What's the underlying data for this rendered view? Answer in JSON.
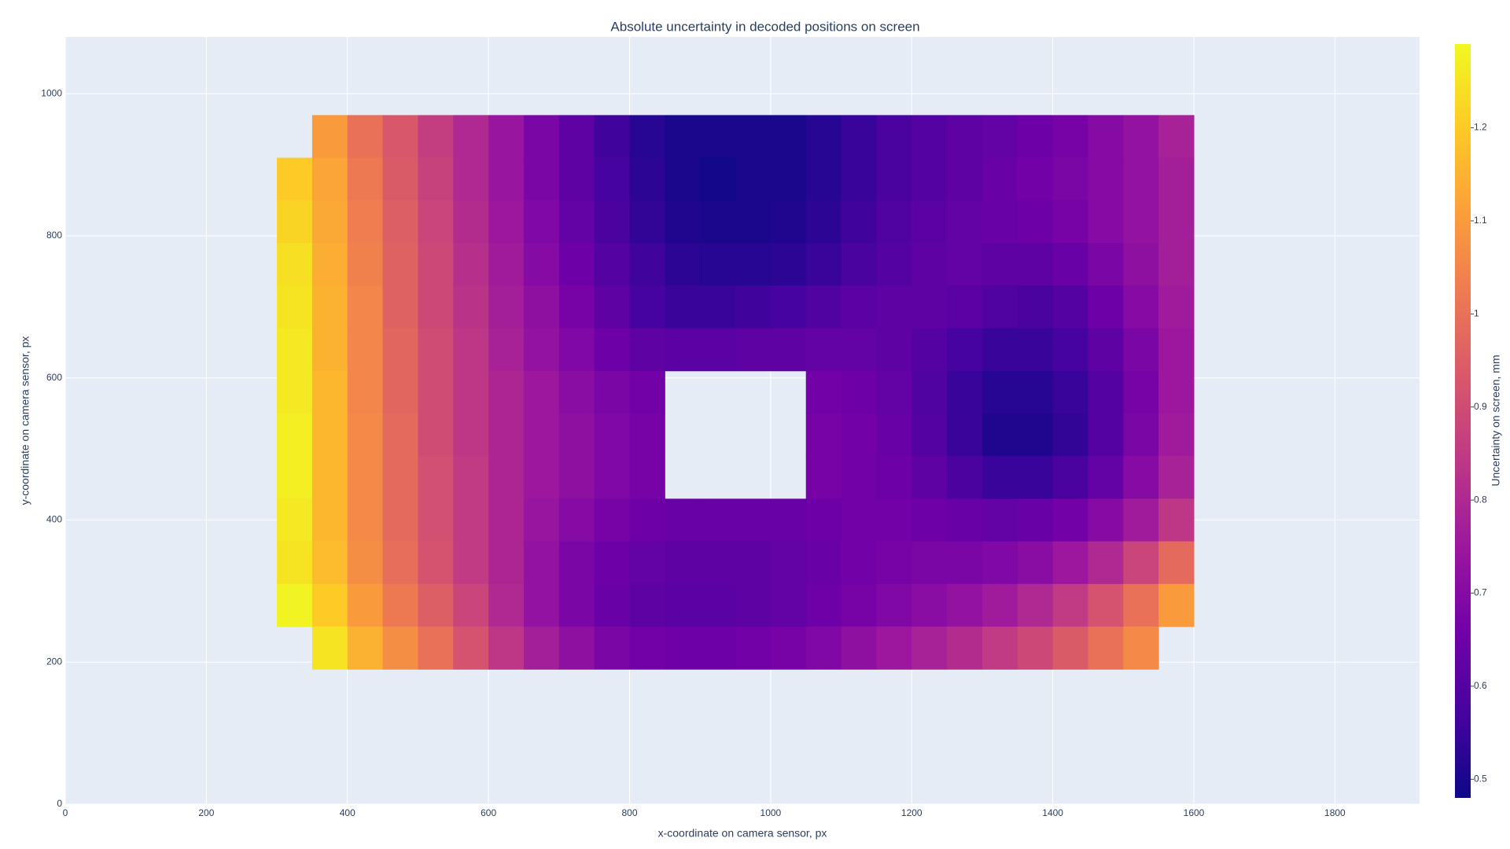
{
  "chart_data": {
    "type": "heatmap",
    "title": "Absolute uncertainty in decoded positions on screen",
    "x_label": "x-coordinate on camera sensor, px",
    "y_label": "y-coordinate on camera sensor, px",
    "colorbar_title": "Uncertainty on screen, mm",
    "xlim": [
      0,
      1920
    ],
    "ylim": [
      0,
      1080
    ],
    "xticks": [
      0,
      200,
      400,
      600,
      800,
      1000,
      1200,
      1400,
      1600,
      1800
    ],
    "yticks": [
      0,
      200,
      400,
      600,
      800,
      1000
    ],
    "zlim": [
      0.48,
      1.29
    ],
    "zticks": [
      0.5,
      0.6,
      0.7,
      0.8,
      0.9,
      1,
      1.1,
      1.2
    ],
    "colorscale": [
      "#0d0887",
      "#46039f",
      "#7201a8",
      "#9c179e",
      "#bd3786",
      "#d8576b",
      "#ed7953",
      "#fb9f3a",
      "#fdca26",
      "#f0f921"
    ],
    "grid": true,
    "x": [
      325,
      375,
      425,
      475,
      525,
      575,
      625,
      675,
      725,
      775,
      825,
      875,
      925,
      975,
      1025,
      1075,
      1125,
      1175,
      1225,
      1275,
      1325,
      1375,
      1425,
      1475,
      1525,
      1575
    ],
    "y": [
      940,
      880,
      820,
      760,
      700,
      640,
      580,
      520,
      460,
      400,
      340,
      280,
      220
    ],
    "z": [
      [
        null,
        1.1,
        1.0,
        0.93,
        0.86,
        0.8,
        0.74,
        0.68,
        0.62,
        0.56,
        0.52,
        0.5,
        0.5,
        0.5,
        0.5,
        0.52,
        0.55,
        0.58,
        0.6,
        0.62,
        0.63,
        0.65,
        0.67,
        0.7,
        0.73,
        0.78
      ],
      [
        1.2,
        1.12,
        1.02,
        0.94,
        0.87,
        0.8,
        0.74,
        0.68,
        0.62,
        0.57,
        0.53,
        0.5,
        0.49,
        0.5,
        0.5,
        0.52,
        0.55,
        0.58,
        0.6,
        0.62,
        0.64,
        0.66,
        0.68,
        0.7,
        0.73,
        0.77
      ],
      [
        1.22,
        1.13,
        1.03,
        0.95,
        0.88,
        0.81,
        0.75,
        0.69,
        0.63,
        0.58,
        0.54,
        0.51,
        0.5,
        0.5,
        0.51,
        0.53,
        0.56,
        0.59,
        0.61,
        0.63,
        0.64,
        0.65,
        0.67,
        0.7,
        0.73,
        0.77
      ],
      [
        1.24,
        1.14,
        1.04,
        0.96,
        0.89,
        0.82,
        0.76,
        0.7,
        0.65,
        0.6,
        0.56,
        0.53,
        0.52,
        0.52,
        0.53,
        0.55,
        0.58,
        0.6,
        0.62,
        0.63,
        0.62,
        0.62,
        0.64,
        0.68,
        0.72,
        0.77
      ],
      [
        1.25,
        1.15,
        1.05,
        0.96,
        0.89,
        0.83,
        0.77,
        0.72,
        0.67,
        0.62,
        0.57,
        0.55,
        0.55,
        0.56,
        0.57,
        0.59,
        0.61,
        0.62,
        0.62,
        0.61,
        0.59,
        0.58,
        0.6,
        0.65,
        0.7,
        0.76
      ],
      [
        1.26,
        1.15,
        1.05,
        0.97,
        0.9,
        0.84,
        0.78,
        0.73,
        0.69,
        0.65,
        0.62,
        0.61,
        0.61,
        0.62,
        0.62,
        0.63,
        0.63,
        0.62,
        0.6,
        0.57,
        0.55,
        0.55,
        0.57,
        0.62,
        0.68,
        0.75
      ],
      [
        1.26,
        1.16,
        1.05,
        0.97,
        0.9,
        0.84,
        0.79,
        0.75,
        0.71,
        0.68,
        0.66,
        null,
        null,
        null,
        null,
        0.66,
        0.65,
        0.63,
        0.59,
        0.55,
        0.52,
        0.52,
        0.55,
        0.6,
        0.67,
        0.75
      ],
      [
        1.27,
        1.16,
        1.06,
        0.98,
        0.9,
        0.84,
        0.79,
        0.75,
        0.72,
        0.69,
        0.67,
        null,
        null,
        null,
        null,
        0.67,
        0.66,
        0.64,
        0.6,
        0.55,
        0.51,
        0.51,
        0.54,
        0.6,
        0.68,
        0.76
      ],
      [
        1.27,
        1.16,
        1.06,
        0.98,
        0.91,
        0.85,
        0.79,
        0.75,
        0.72,
        0.69,
        0.67,
        null,
        null,
        null,
        null,
        0.67,
        0.66,
        0.65,
        0.62,
        0.58,
        0.55,
        0.55,
        0.58,
        0.63,
        0.7,
        0.78
      ],
      [
        1.26,
        1.16,
        1.06,
        0.98,
        0.91,
        0.85,
        0.79,
        0.74,
        0.7,
        0.67,
        0.65,
        0.64,
        0.64,
        0.64,
        0.64,
        0.65,
        0.66,
        0.66,
        0.65,
        0.64,
        0.63,
        0.64,
        0.66,
        0.7,
        0.76,
        0.84
      ],
      [
        1.25,
        1.17,
        1.07,
        0.99,
        0.92,
        0.85,
        0.79,
        0.73,
        0.68,
        0.65,
        0.63,
        0.62,
        0.62,
        0.62,
        0.63,
        0.64,
        0.66,
        0.67,
        0.68,
        0.68,
        0.69,
        0.71,
        0.75,
        0.8,
        0.88,
        0.98
      ],
      [
        1.28,
        1.2,
        1.1,
        1.02,
        0.95,
        0.88,
        0.8,
        0.73,
        0.68,
        0.64,
        0.62,
        0.61,
        0.61,
        0.62,
        0.63,
        0.65,
        0.67,
        0.69,
        0.71,
        0.73,
        0.76,
        0.8,
        0.85,
        0.92,
        1.0,
        1.1
      ],
      [
        null,
        1.25,
        1.15,
        1.07,
        1.0,
        0.92,
        0.84,
        0.77,
        0.72,
        0.68,
        0.66,
        0.65,
        0.65,
        0.66,
        0.67,
        0.69,
        0.72,
        0.75,
        0.78,
        0.81,
        0.85,
        0.89,
        0.94,
        1.0,
        1.06,
        null
      ]
    ]
  }
}
